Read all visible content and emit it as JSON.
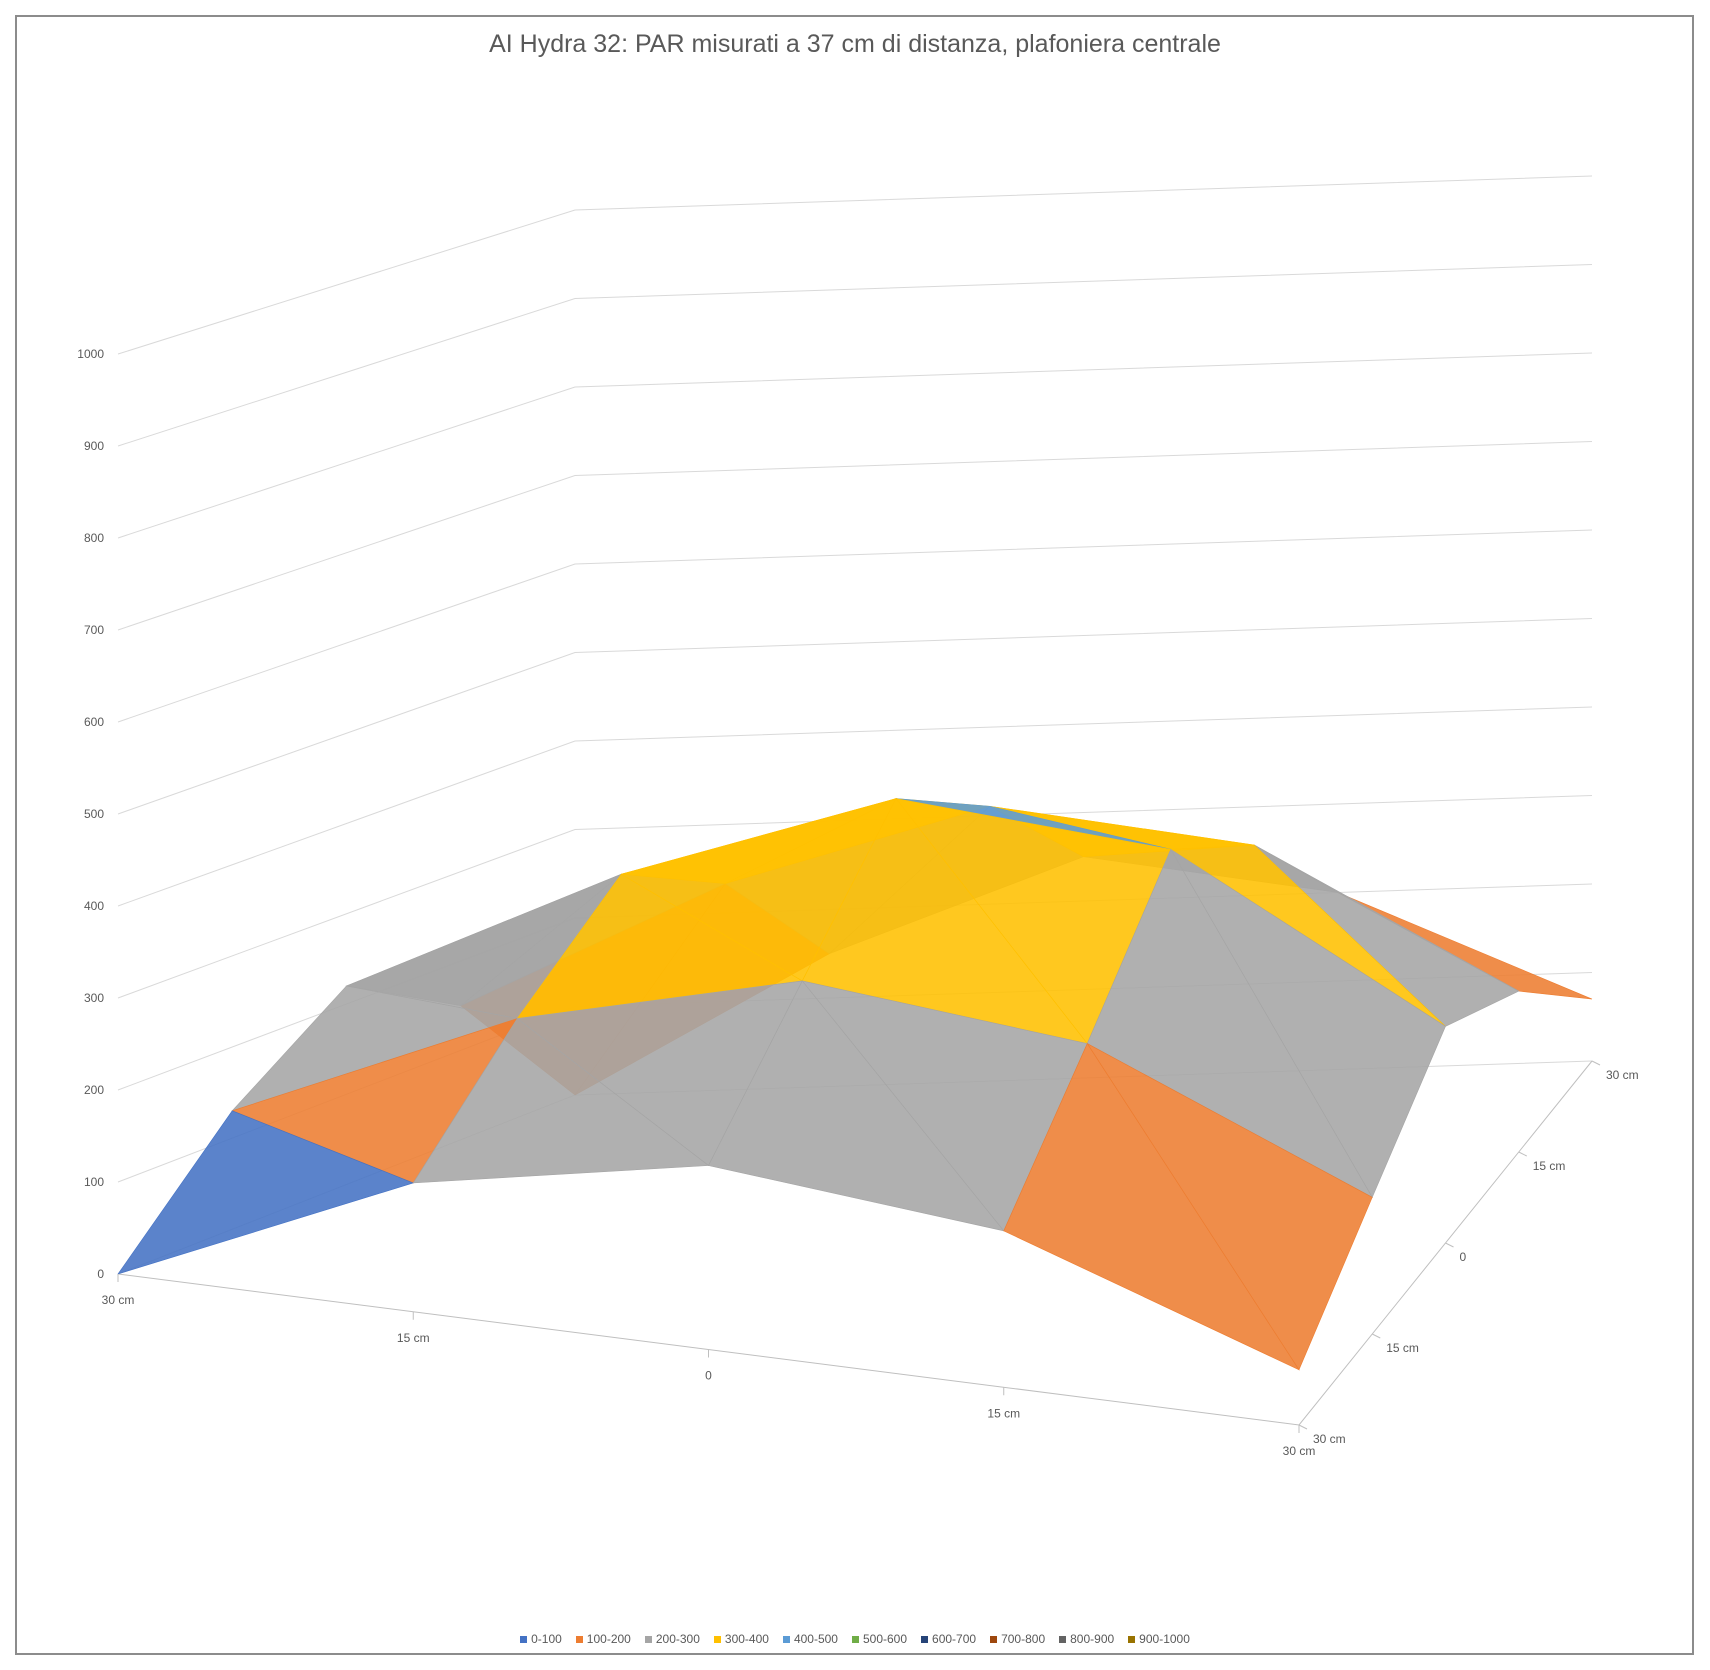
{
  "chart_data": {
    "type": "surface",
    "title": "AI Hydra 32: PAR misurati a 37 cm di distanza, plafoniera centrale",
    "x_tick_labels": [
      "30 cm",
      "15 cm",
      "0",
      "15 cm",
      "30 cm"
    ],
    "y_tick_labels": [
      "30 cm",
      "15 cm",
      "0",
      "15 cm",
      "30 cm"
    ],
    "z_tick_labels": [
      "0",
      "100",
      "200",
      "300",
      "400",
      "500",
      "600",
      "700",
      "800",
      "900",
      "1000"
    ],
    "zlim": [
      0,
      1000
    ],
    "grid": true,
    "legend_position": "bottom",
    "grid_values": [
      [
        0,
        150,
        250,
        200,
        70
      ],
      [
        150,
        290,
        380,
        340,
        180
      ],
      [
        220,
        360,
        460,
        420,
        240
      ],
      [
        130,
        260,
        330,
        290,
        150
      ],
      [
        0,
        140,
        200,
        170,
        60
      ]
    ],
    "bands": [
      {
        "label": "0-100",
        "color": "#4472C4"
      },
      {
        "label": "100-200",
        "color": "#ED7D31"
      },
      {
        "label": "200-300",
        "color": "#A5A5A5"
      },
      {
        "label": "300-400",
        "color": "#FFC000"
      },
      {
        "label": "400-500",
        "color": "#5B9BD5"
      },
      {
        "label": "500-600",
        "color": "#70AD47"
      },
      {
        "label": "600-700",
        "color": "#264478"
      },
      {
        "label": "700-800",
        "color": "#9E480E"
      },
      {
        "label": "800-900",
        "color": "#636363"
      },
      {
        "label": "900-1000",
        "color": "#997300"
      }
    ]
  }
}
